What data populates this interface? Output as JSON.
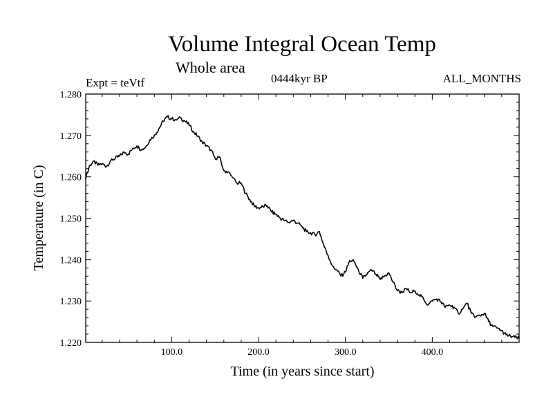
{
  "chart_data": {
    "type": "line",
    "title": "Volume Integral Ocean Temp",
    "subtitle": "Whole area",
    "experiment": "Expt = teVtf",
    "period": "0444kyr BP",
    "months": "ALL_MONTHS",
    "xlabel": "Time (in years since start)",
    "ylabel": "Temperature (in C)",
    "xlim": [
      1,
      500
    ],
    "ylim": [
      1.22,
      1.28
    ],
    "x_ticks": [
      100,
      200,
      300,
      400
    ],
    "x_tick_labels": [
      "100.0",
      "200.0",
      "300.0",
      "400.0"
    ],
    "y_ticks": [
      1.22,
      1.23,
      1.24,
      1.25,
      1.26,
      1.27,
      1.28
    ],
    "y_tick_labels": [
      "1.220",
      "1.230",
      "1.240",
      "1.250",
      "1.260",
      "1.270",
      "1.280"
    ],
    "grid": false,
    "line_color": "#000000",
    "series": [
      {
        "x": [
          1,
          5,
          10,
          15,
          20,
          25,
          30,
          35,
          40,
          45,
          50,
          55,
          60,
          65,
          70,
          75,
          80,
          85,
          90,
          95,
          100,
          105,
          110,
          115,
          120,
          125,
          130,
          135,
          140,
          145,
          150,
          155,
          160,
          165,
          170,
          175,
          180,
          185,
          190,
          195,
          200,
          205,
          210,
          215,
          220,
          225,
          230,
          235,
          240,
          245,
          250,
          255,
          260,
          265,
          270,
          275,
          280,
          285,
          290,
          295,
          300,
          305,
          310,
          315,
          320,
          325,
          330,
          335,
          340,
          345,
          350,
          355,
          360,
          365,
          370,
          375,
          380,
          385,
          390,
          395,
          400,
          405,
          410,
          415,
          420,
          425,
          430,
          435,
          440,
          445,
          450,
          455,
          460,
          465,
          470,
          475,
          480,
          485,
          490,
          495,
          500
        ],
        "values": [
          1.2595,
          1.2625,
          1.2638,
          1.2628,
          1.2632,
          1.2625,
          1.264,
          1.2645,
          1.265,
          1.266,
          1.2655,
          1.2668,
          1.2675,
          1.2665,
          1.2672,
          1.269,
          1.27,
          1.2715,
          1.2735,
          1.2745,
          1.274,
          1.2738,
          1.2742,
          1.2735,
          1.2725,
          1.271,
          1.2698,
          1.2685,
          1.2675,
          1.2665,
          1.2645,
          1.2648,
          1.2615,
          1.2612,
          1.2598,
          1.2585,
          1.2585,
          1.256,
          1.2545,
          1.253,
          1.2525,
          1.2528,
          1.253,
          1.2515,
          1.251,
          1.25,
          1.2495,
          1.249,
          1.2495,
          1.2488,
          1.248,
          1.2468,
          1.2465,
          1.246,
          1.2468,
          1.2435,
          1.241,
          1.2385,
          1.2375,
          1.236,
          1.237,
          1.2398,
          1.2395,
          1.2375,
          1.2355,
          1.2365,
          1.2375,
          1.2365,
          1.2352,
          1.236,
          1.2368,
          1.2345,
          1.2325,
          1.232,
          1.233,
          1.232,
          1.2325,
          1.2315,
          1.2305,
          1.229,
          1.23,
          1.2305,
          1.2298,
          1.2285,
          1.229,
          1.2285,
          1.227,
          1.228,
          1.2295,
          1.227,
          1.2262,
          1.2265,
          1.227,
          1.225,
          1.2238,
          1.2235,
          1.2228,
          1.2218,
          1.2215,
          1.2212,
          1.221
        ]
      }
    ]
  }
}
